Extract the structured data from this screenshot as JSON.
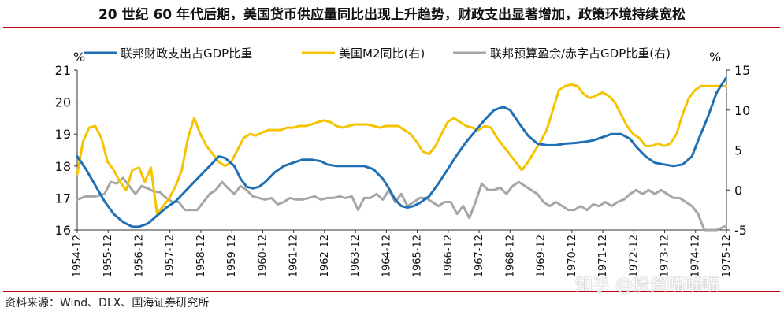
{
  "title": "20 世纪 60 年代后期，美国货币供应量同比出现上升趋势，财政支出显著增加，政策环境持续宽松",
  "source": "资料来源：Wind、DLX、国海证券研究所",
  "watermark": "知乎 @投资喵喵喵",
  "colors": {
    "spending": "#1f6fb4",
    "m2": "#f5c400",
    "deficit": "#a6a6a6",
    "accent": "#c00000"
  },
  "chart_data": {
    "type": "line",
    "left_axis": {
      "unit": "%",
      "ylim": [
        16,
        21
      ],
      "ticks": [
        "16",
        "17",
        "18",
        "19",
        "20",
        "21"
      ]
    },
    "right_axis": {
      "unit": "%",
      "ylim": [
        -5,
        15
      ],
      "ticks": [
        "-5",
        "0",
        "5",
        "10",
        "15"
      ]
    },
    "xlim": [
      1954.917,
      1975.917
    ],
    "x_ticks": [
      "1954-12",
      "1955-12",
      "1956-12",
      "1957-12",
      "1958-12",
      "1959-12",
      "1960-12",
      "1961-12",
      "1962-12",
      "1963-12",
      "1964-12",
      "1965-12",
      "1966-12",
      "1967-12",
      "1968-12",
      "1969-12",
      "1970-12",
      "1971-12",
      "1972-12",
      "1973-12",
      "1974-12",
      "1975-12"
    ],
    "legend_position": "top",
    "series": [
      {
        "name": "联邦财政支出占GDP比重",
        "axis": "left",
        "x": [
          1954.92,
          1955.2,
          1955.5,
          1955.8,
          1956.1,
          1956.4,
          1956.7,
          1956.92,
          1957.2,
          1957.5,
          1957.8,
          1958.1,
          1958.4,
          1958.7,
          1959.0,
          1959.3,
          1959.5,
          1959.7,
          1960.0,
          1960.2,
          1960.4,
          1960.6,
          1960.8,
          1961.0,
          1961.3,
          1961.6,
          1961.9,
          1962.2,
          1962.5,
          1962.8,
          1963.0,
          1963.3,
          1963.6,
          1963.9,
          1964.2,
          1964.5,
          1964.8,
          1965.0,
          1965.2,
          1965.4,
          1965.6,
          1965.8,
          1966.0,
          1966.3,
          1966.6,
          1966.9,
          1967.2,
          1967.5,
          1967.8,
          1968.1,
          1968.4,
          1968.7,
          1968.92,
          1969.2,
          1969.5,
          1969.8,
          1970.1,
          1970.4,
          1970.7,
          1971.0,
          1971.3,
          1971.6,
          1971.9,
          1972.2,
          1972.5,
          1972.8,
          1973.0,
          1973.3,
          1973.6,
          1973.9,
          1974.2,
          1974.5,
          1974.8,
          1975.0,
          1975.3,
          1975.6,
          1975.9
        ],
        "values": [
          18.3,
          17.9,
          17.4,
          16.9,
          16.5,
          16.25,
          16.1,
          16.1,
          16.2,
          16.45,
          16.7,
          16.9,
          17.2,
          17.5,
          17.8,
          18.1,
          18.3,
          18.25,
          18.0,
          17.6,
          17.35,
          17.3,
          17.35,
          17.5,
          17.8,
          18.0,
          18.1,
          18.2,
          18.2,
          18.15,
          18.05,
          18.0,
          18.0,
          18.0,
          18.0,
          17.9,
          17.6,
          17.3,
          16.95,
          16.75,
          16.7,
          16.75,
          16.85,
          17.05,
          17.45,
          17.9,
          18.35,
          18.75,
          19.1,
          19.45,
          19.75,
          19.85,
          19.75,
          19.35,
          18.95,
          18.7,
          18.65,
          18.65,
          18.7,
          18.72,
          18.75,
          18.8,
          18.9,
          19.0,
          19.0,
          18.85,
          18.6,
          18.3,
          18.1,
          18.05,
          18.0,
          18.05,
          18.3,
          18.8,
          19.5,
          20.3,
          20.75
        ]
      },
      {
        "name": "美国M2同比(右)",
        "axis": "right",
        "x": [
          1954.92,
          1955.1,
          1955.3,
          1955.5,
          1955.7,
          1955.9,
          1956.1,
          1956.3,
          1956.5,
          1956.7,
          1956.92,
          1957.1,
          1957.3,
          1957.5,
          1957.7,
          1957.9,
          1958.1,
          1958.3,
          1958.5,
          1958.7,
          1958.9,
          1959.1,
          1959.3,
          1959.5,
          1959.7,
          1959.9,
          1960.1,
          1960.3,
          1960.5,
          1960.7,
          1960.9,
          1961.1,
          1961.3,
          1961.5,
          1961.7,
          1961.9,
          1962.1,
          1962.3,
          1962.5,
          1962.7,
          1962.9,
          1963.1,
          1963.3,
          1963.5,
          1963.7,
          1963.9,
          1964.1,
          1964.3,
          1964.5,
          1964.7,
          1964.9,
          1965.1,
          1965.3,
          1965.5,
          1965.7,
          1965.9,
          1966.1,
          1966.3,
          1966.5,
          1966.7,
          1966.9,
          1967.1,
          1967.3,
          1967.5,
          1967.7,
          1967.9,
          1968.1,
          1968.3,
          1968.5,
          1968.7,
          1968.9,
          1969.1,
          1969.3,
          1969.5,
          1969.7,
          1969.9,
          1970.1,
          1970.3,
          1970.5,
          1970.7,
          1970.9,
          1971.1,
          1971.3,
          1971.5,
          1971.7,
          1971.9,
          1972.1,
          1972.3,
          1972.5,
          1972.7,
          1972.9,
          1973.1,
          1973.3,
          1973.5,
          1973.7,
          1973.9,
          1974.1,
          1974.3,
          1974.5,
          1974.7,
          1974.9,
          1975.1,
          1975.3,
          1975.5,
          1975.7,
          1975.9
        ],
        "values": [
          2.0,
          6.0,
          7.8,
          8.0,
          6.5,
          3.5,
          2.5,
          1.0,
          0.0,
          2.5,
          2.8,
          1.0,
          2.8,
          -3.0,
          -2.0,
          -1.0,
          0.5,
          2.5,
          6.5,
          9.0,
          7.0,
          5.5,
          4.5,
          3.5,
          3.0,
          3.5,
          5.0,
          6.5,
          7.0,
          6.8,
          7.2,
          7.5,
          7.5,
          7.5,
          7.8,
          7.8,
          8.0,
          8.0,
          8.2,
          8.5,
          8.7,
          8.5,
          8.0,
          7.8,
          8.0,
          8.2,
          8.2,
          8.2,
          8.0,
          7.8,
          8.0,
          8.0,
          8.0,
          7.5,
          7.0,
          6.0,
          4.8,
          4.5,
          5.5,
          7.0,
          8.5,
          9.0,
          8.5,
          8.0,
          7.8,
          7.5,
          8.0,
          7.8,
          6.5,
          5.5,
          4.5,
          3.5,
          2.5,
          3.5,
          4.8,
          6.0,
          7.5,
          10.0,
          12.5,
          13.0,
          13.2,
          13.0,
          12.0,
          11.5,
          11.8,
          12.2,
          11.8,
          11.0,
          9.5,
          8.0,
          7.0,
          6.5,
          5.5,
          5.5,
          5.8,
          5.5,
          5.8,
          7.0,
          9.5,
          11.5,
          12.5,
          13.0,
          13.0,
          13.0,
          13.0,
          13.0
        ]
      },
      {
        "name": "联邦预算盈余/赤字占GDP比重(右)",
        "axis": "right",
        "x": [
          1954.92,
          1955.2,
          1955.5,
          1955.8,
          1956.0,
          1956.2,
          1956.4,
          1956.6,
          1956.8,
          1957.0,
          1957.2,
          1957.4,
          1957.6,
          1957.8,
          1958.0,
          1958.2,
          1958.4,
          1958.6,
          1958.8,
          1959.0,
          1959.2,
          1959.4,
          1959.6,
          1959.8,
          1960.0,
          1960.2,
          1960.4,
          1960.6,
          1960.8,
          1961.0,
          1961.2,
          1961.4,
          1961.6,
          1961.8,
          1962.0,
          1962.2,
          1962.4,
          1962.6,
          1962.8,
          1963.0,
          1963.2,
          1963.4,
          1963.6,
          1963.8,
          1964.0,
          1964.2,
          1964.4,
          1964.6,
          1964.8,
          1965.0,
          1965.2,
          1965.4,
          1965.6,
          1965.8,
          1966.0,
          1966.2,
          1966.4,
          1966.6,
          1966.8,
          1967.0,
          1967.2,
          1967.4,
          1967.6,
          1967.8,
          1968.0,
          1968.2,
          1968.4,
          1968.6,
          1968.8,
          1969.0,
          1969.2,
          1969.4,
          1969.6,
          1969.8,
          1970.0,
          1970.2,
          1970.4,
          1970.6,
          1970.8,
          1971.0,
          1971.2,
          1971.4,
          1971.6,
          1971.8,
          1972.0,
          1972.2,
          1972.4,
          1972.6,
          1972.8,
          1973.0,
          1973.2,
          1973.4,
          1973.6,
          1973.8,
          1974.0,
          1974.2,
          1974.4,
          1974.6,
          1974.8,
          1975.0,
          1975.2,
          1975.4,
          1975.6,
          1975.9
        ],
        "values": [
          -1.2,
          -0.8,
          -0.8,
          -0.5,
          1.0,
          0.8,
          1.5,
          0.5,
          -0.5,
          0.5,
          0.2,
          -0.2,
          -0.3,
          -1.0,
          -1.5,
          -1.5,
          -2.5,
          -2.5,
          -2.5,
          -1.5,
          -0.5,
          0.0,
          1.0,
          0.2,
          -0.5,
          0.5,
          0.0,
          -0.8,
          -1.0,
          -1.2,
          -1.0,
          -1.8,
          -1.5,
          -1.0,
          -1.2,
          -1.2,
          -1.0,
          -0.8,
          -1.2,
          -1.0,
          -1.0,
          -0.8,
          -1.0,
          -0.8,
          -2.5,
          -1.0,
          -1.0,
          -0.5,
          -1.2,
          0.0,
          -1.5,
          -0.5,
          -2.0,
          -1.5,
          -1.0,
          -1.0,
          -1.5,
          -2.0,
          -1.5,
          -1.5,
          -3.0,
          -2.0,
          -3.5,
          -1.5,
          0.8,
          0.0,
          0.0,
          0.3,
          -0.5,
          0.5,
          1.0,
          0.5,
          0.0,
          -0.5,
          -1.5,
          -2.0,
          -1.5,
          -2.0,
          -2.5,
          -2.5,
          -2.0,
          -2.5,
          -1.8,
          -2.0,
          -1.5,
          -2.0,
          -1.5,
          -1.2,
          -0.5,
          0.0,
          -0.5,
          0.0,
          -0.5,
          0.0,
          -0.5,
          -1.0,
          -1.0,
          -1.5,
          -2.0,
          -3.0,
          -5.0,
          -5.0,
          -5.0,
          -4.5
        ]
      }
    ]
  }
}
